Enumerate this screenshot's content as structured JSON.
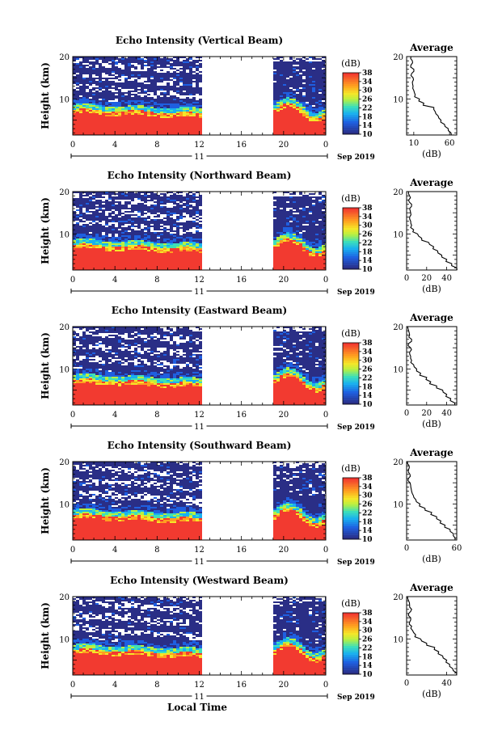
{
  "panels": [
    {
      "title": "Echo Intensity (Vertical Beam)"
    },
    {
      "title": "Echo Intensity (Northward Beam)"
    },
    {
      "title": "Echo Intensity (Eastward Beam)"
    },
    {
      "title": "Echo Intensity (Southward Beam)"
    },
    {
      "title": "Echo Intensity (Westward Beam)"
    }
  ],
  "labels": {
    "ylabel": "Height (km)",
    "xlabel": "Local Time",
    "colorbar_unit": "(dB)",
    "average_title": "Average",
    "average_xlabel": "(dB)",
    "day": "11",
    "month_year": "Sep 2019"
  },
  "chart_data": {
    "type": "heatmap",
    "x_ticks": [
      "0",
      "4",
      "8",
      "12",
      "16",
      "20",
      "0"
    ],
    "y_ticks": [
      "20",
      "10"
    ],
    "xlim": [
      0,
      24
    ],
    "ylim": [
      1.5,
      20
    ],
    "data_gap_hours": [
      12.3,
      19.0
    ],
    "colorbar_ticks": [
      "38",
      "34",
      "30",
      "26",
      "22",
      "18",
      "14",
      "10"
    ],
    "colorbar_range": [
      10,
      38
    ],
    "colors": [
      "#2a2e86",
      "#1f5fe0",
      "#19b0f0",
      "#3ee0b8",
      "#b8f040",
      "#f5e628",
      "#ffa020",
      "#f23a30"
    ],
    "average_xticks": [
      [
        "10",
        "60"
      ],
      [
        "0",
        "20",
        "40"
      ],
      [
        "0",
        "20",
        "40"
      ],
      [
        "0",
        "60"
      ],
      [
        "0",
        "40"
      ]
    ],
    "average_xlim": [
      [
        0,
        70
      ],
      [
        0,
        50
      ],
      [
        0,
        50
      ],
      [
        0,
        60
      ],
      [
        0,
        50
      ]
    ],
    "average_profile_height_km": [
      20,
      19,
      18,
      17,
      16,
      15,
      14,
      13,
      12,
      11,
      10,
      9,
      8,
      7,
      6,
      5,
      4,
      3,
      2
    ],
    "average_profiles": [
      [
        6,
        8,
        6,
        10,
        7,
        9,
        8,
        9,
        10,
        12,
        18,
        24,
        38,
        40,
        44,
        48,
        53,
        58,
        62
      ],
      [
        2,
        3,
        2,
        5,
        3,
        4,
        3,
        4,
        5,
        7,
        11,
        15,
        22,
        27,
        31,
        35,
        40,
        45,
        50
      ],
      [
        1,
        2,
        3,
        5,
        2,
        4,
        3,
        4,
        5,
        7,
        10,
        14,
        20,
        24,
        30,
        36,
        40,
        44,
        48
      ],
      [
        1,
        3,
        2,
        4,
        2,
        4,
        5,
        6,
        8,
        11,
        16,
        22,
        30,
        36,
        41,
        46,
        52,
        56,
        58
      ],
      [
        1,
        2,
        3,
        5,
        2,
        4,
        3,
        5,
        6,
        9,
        14,
        20,
        28,
        32,
        36,
        40,
        43,
        46,
        50
      ]
    ]
  }
}
